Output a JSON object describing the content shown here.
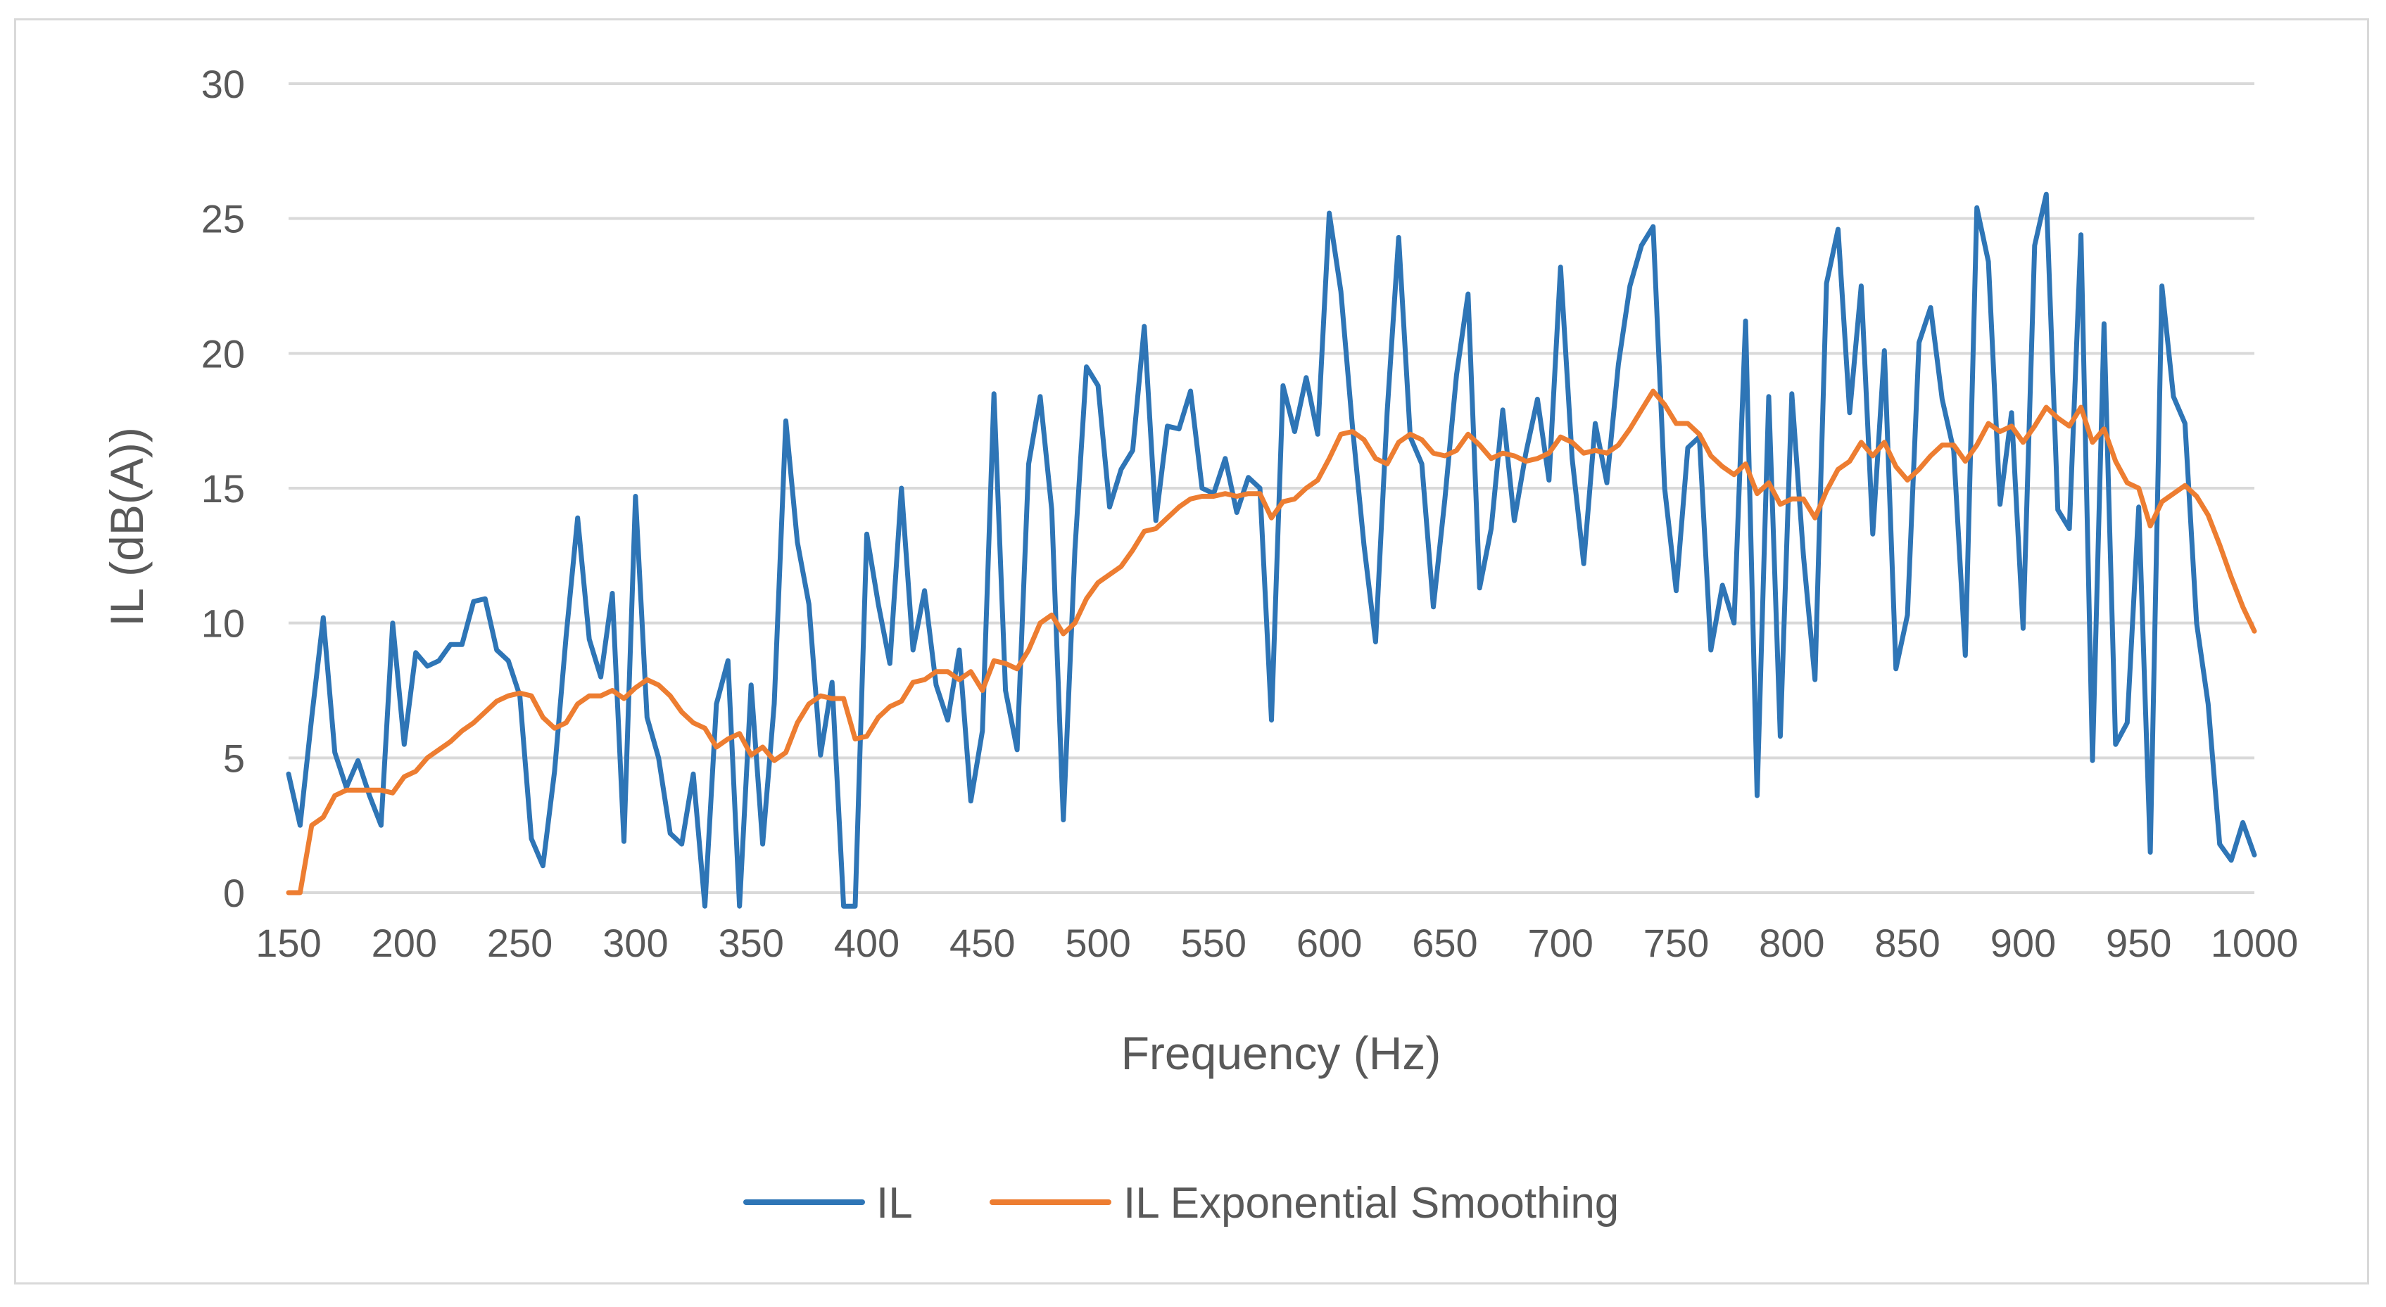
{
  "chart_data": {
    "type": "line",
    "title": "",
    "xlabel": "Frequency (Hz)",
    "ylabel": "IL (dB(A))",
    "xlim": [
      150,
      1000
    ],
    "ylim": [
      0,
      30
    ],
    "xticks": [
      "150",
      "200",
      "250",
      "300",
      "350",
      "400",
      "450",
      "500",
      "550",
      "600",
      "650",
      "700",
      "750",
      "800",
      "850",
      "900",
      "950",
      "1000"
    ],
    "yticks": [
      "0",
      "5",
      "10",
      "15",
      "20",
      "25",
      "30"
    ],
    "grid": "horizontal",
    "legend_position": "bottom",
    "colors": {
      "il": "#2e75b6",
      "smoothing": "#ed7d31",
      "grid": "#d9d9d9",
      "text": "#595959"
    },
    "series": [
      {
        "name": "IL",
        "x": [
          150,
          155,
          160,
          165,
          170,
          175,
          180,
          185,
          190,
          195,
          200,
          205,
          210,
          215,
          220,
          225,
          230,
          235,
          240,
          245,
          250,
          255,
          260,
          265,
          270,
          275,
          280,
          285,
          290,
          295,
          300,
          305,
          310,
          315,
          320,
          325,
          330,
          335,
          340,
          345,
          350,
          355,
          360,
          365,
          370,
          375,
          380,
          385,
          390,
          395,
          400,
          405,
          410,
          415,
          420,
          425,
          430,
          435,
          440,
          445,
          450,
          455,
          460,
          465,
          470,
          475,
          480,
          485,
          490,
          495,
          500,
          505,
          510,
          515,
          520,
          525,
          530,
          535,
          540,
          545,
          550,
          555,
          560,
          565,
          570,
          575,
          580,
          585,
          590,
          595,
          600,
          605,
          610,
          615,
          620,
          625,
          630,
          635,
          640,
          645,
          650,
          655,
          660,
          665,
          670,
          675,
          680,
          685,
          690,
          695,
          700,
          705,
          710,
          715,
          720,
          725,
          730,
          735,
          740,
          745,
          750,
          755,
          760,
          765,
          770,
          775,
          780,
          785,
          790,
          795,
          800,
          805,
          810,
          815,
          820,
          825,
          830,
          835,
          840,
          845,
          850,
          855,
          860,
          865,
          870,
          875,
          880,
          885,
          890,
          895,
          900,
          905,
          910,
          915,
          920,
          925,
          930,
          935,
          940,
          945,
          950,
          955,
          960,
          965,
          970,
          975,
          980,
          985,
          990,
          995,
          1000
        ],
        "values": [
          4.4,
          2.5,
          6.5,
          10.2,
          5.2,
          3.9,
          4.9,
          3.6,
          2.5,
          10.0,
          5.5,
          8.9,
          8.4,
          8.6,
          9.2,
          9.2,
          10.8,
          10.9,
          9.0,
          8.6,
          7.3,
          2.0,
          1.0,
          4.5,
          9.5,
          13.9,
          9.4,
          8.0,
          11.1,
          1.9,
          14.7,
          6.5,
          5.0,
          2.2,
          1.8,
          4.4,
          -0.5,
          7.0,
          8.6,
          -0.5,
          7.7,
          1.8,
          7.0,
          17.5,
          13.0,
          10.7,
          5.1,
          7.8,
          -0.5,
          -0.5,
          13.3,
          10.7,
          8.5,
          15.0,
          9.0,
          11.2,
          7.7,
          6.4,
          9.0,
          3.4,
          6.0,
          18.5,
          7.5,
          5.3,
          15.9,
          18.4,
          14.2,
          2.7,
          12.7,
          19.5,
          18.8,
          14.3,
          15.7,
          16.4,
          21.0,
          13.8,
          17.3,
          17.2,
          18.6,
          15.0,
          14.8,
          16.1,
          14.1,
          15.4,
          15.0,
          6.4,
          18.8,
          17.1,
          19.1,
          17.0,
          25.2,
          22.3,
          17.3,
          12.9,
          9.3,
          17.8,
          24.3,
          16.9,
          15.9,
          10.6,
          14.6,
          19.2,
          22.2,
          11.3,
          13.5,
          17.9,
          13.8,
          16.3,
          18.3,
          15.3,
          23.2,
          16.1,
          12.2,
          17.4,
          15.2,
          19.6,
          22.5,
          24.0,
          24.7,
          15.0,
          11.2,
          16.5,
          16.9,
          9.0,
          11.4,
          10.0,
          21.2,
          3.6,
          18.4,
          5.8,
          18.5,
          12.5,
          7.9,
          22.6,
          24.6,
          17.8,
          22.5,
          13.3,
          20.1,
          8.3,
          10.3,
          20.4,
          21.7,
          18.3,
          16.4,
          8.8,
          25.4,
          23.4,
          14.4,
          17.8,
          9.8,
          24.0,
          25.9,
          14.2,
          13.5,
          24.4,
          4.9,
          21.1,
          5.5,
          6.3,
          14.3,
          1.5,
          22.5,
          18.4,
          17.4,
          10.0,
          7.0,
          1.8,
          1.2,
          2.6,
          1.4
        ]
      },
      {
        "name": "IL Exponential Smoothing",
        "x": [
          150,
          155,
          160,
          165,
          170,
          175,
          180,
          185,
          190,
          195,
          200,
          205,
          210,
          215,
          220,
          225,
          230,
          235,
          240,
          245,
          250,
          255,
          260,
          265,
          270,
          275,
          280,
          285,
          290,
          295,
          300,
          305,
          310,
          315,
          320,
          325,
          330,
          335,
          340,
          345,
          350,
          355,
          360,
          365,
          370,
          375,
          380,
          385,
          390,
          395,
          400,
          405,
          410,
          415,
          420,
          425,
          430,
          435,
          440,
          445,
          450,
          455,
          460,
          465,
          470,
          475,
          480,
          485,
          490,
          495,
          500,
          505,
          510,
          515,
          520,
          525,
          530,
          535,
          540,
          545,
          550,
          555,
          560,
          565,
          570,
          575,
          580,
          585,
          590,
          595,
          600,
          605,
          610,
          615,
          620,
          625,
          630,
          635,
          640,
          645,
          650,
          655,
          660,
          665,
          670,
          675,
          680,
          685,
          690,
          695,
          700,
          705,
          710,
          715,
          720,
          725,
          730,
          735,
          740,
          745,
          750,
          755,
          760,
          765,
          770,
          775,
          780,
          785,
          790,
          795,
          800,
          805,
          810,
          815,
          820,
          825,
          830,
          835,
          840,
          845,
          850,
          855,
          860,
          865,
          870,
          875,
          880,
          885,
          890,
          895,
          900,
          905,
          910,
          915,
          920,
          925,
          930,
          935,
          940,
          945,
          950,
          955,
          960,
          965,
          970,
          975,
          980,
          985,
          990,
          995,
          1000
        ],
        "values": [
          0.0,
          0.0,
          2.5,
          2.8,
          3.6,
          3.8,
          3.8,
          3.8,
          3.8,
          3.7,
          4.3,
          4.5,
          5.0,
          5.3,
          5.6,
          6.0,
          6.3,
          6.7,
          7.1,
          7.3,
          7.4,
          7.3,
          6.5,
          6.1,
          6.3,
          7.0,
          7.3,
          7.3,
          7.5,
          7.2,
          7.6,
          7.9,
          7.7,
          7.3,
          6.7,
          6.3,
          6.1,
          5.4,
          5.7,
          5.9,
          5.1,
          5.4,
          4.9,
          5.2,
          6.3,
          7.0,
          7.3,
          7.2,
          7.2,
          5.7,
          5.8,
          6.5,
          6.9,
          7.1,
          7.8,
          7.9,
          8.2,
          8.2,
          7.9,
          8.2,
          7.5,
          8.6,
          8.5,
          8.3,
          9.0,
          10.0,
          10.3,
          9.6,
          10.0,
          10.9,
          11.5,
          11.8,
          12.1,
          12.7,
          13.4,
          13.5,
          13.9,
          14.3,
          14.6,
          14.7,
          14.7,
          14.8,
          14.7,
          14.8,
          14.8,
          13.9,
          14.5,
          14.6,
          15.0,
          15.3,
          16.1,
          17.0,
          17.1,
          16.8,
          16.1,
          15.9,
          16.7,
          17.0,
          16.8,
          16.3,
          16.2,
          16.4,
          17.0,
          16.6,
          16.1,
          16.3,
          16.2,
          16.0,
          16.1,
          16.3,
          16.9,
          16.7,
          16.3,
          16.4,
          16.3,
          16.6,
          17.2,
          17.9,
          18.6,
          18.1,
          17.4,
          17.4,
          17.0,
          16.2,
          15.8,
          15.5,
          15.9,
          14.8,
          15.2,
          14.4,
          14.6,
          14.6,
          13.9,
          14.9,
          15.7,
          16.0,
          16.7,
          16.2,
          16.7,
          15.8,
          15.3,
          15.7,
          16.2,
          16.6,
          16.6,
          16.0,
          16.6,
          17.4,
          17.1,
          17.3,
          16.7,
          17.3,
          18.0,
          17.6,
          17.3,
          18.0,
          16.7,
          17.2,
          16.0,
          15.2,
          15.0,
          13.6,
          14.5,
          14.8,
          15.1,
          14.7,
          14.0,
          12.9,
          11.7,
          10.6,
          9.7
        ]
      }
    ]
  }
}
